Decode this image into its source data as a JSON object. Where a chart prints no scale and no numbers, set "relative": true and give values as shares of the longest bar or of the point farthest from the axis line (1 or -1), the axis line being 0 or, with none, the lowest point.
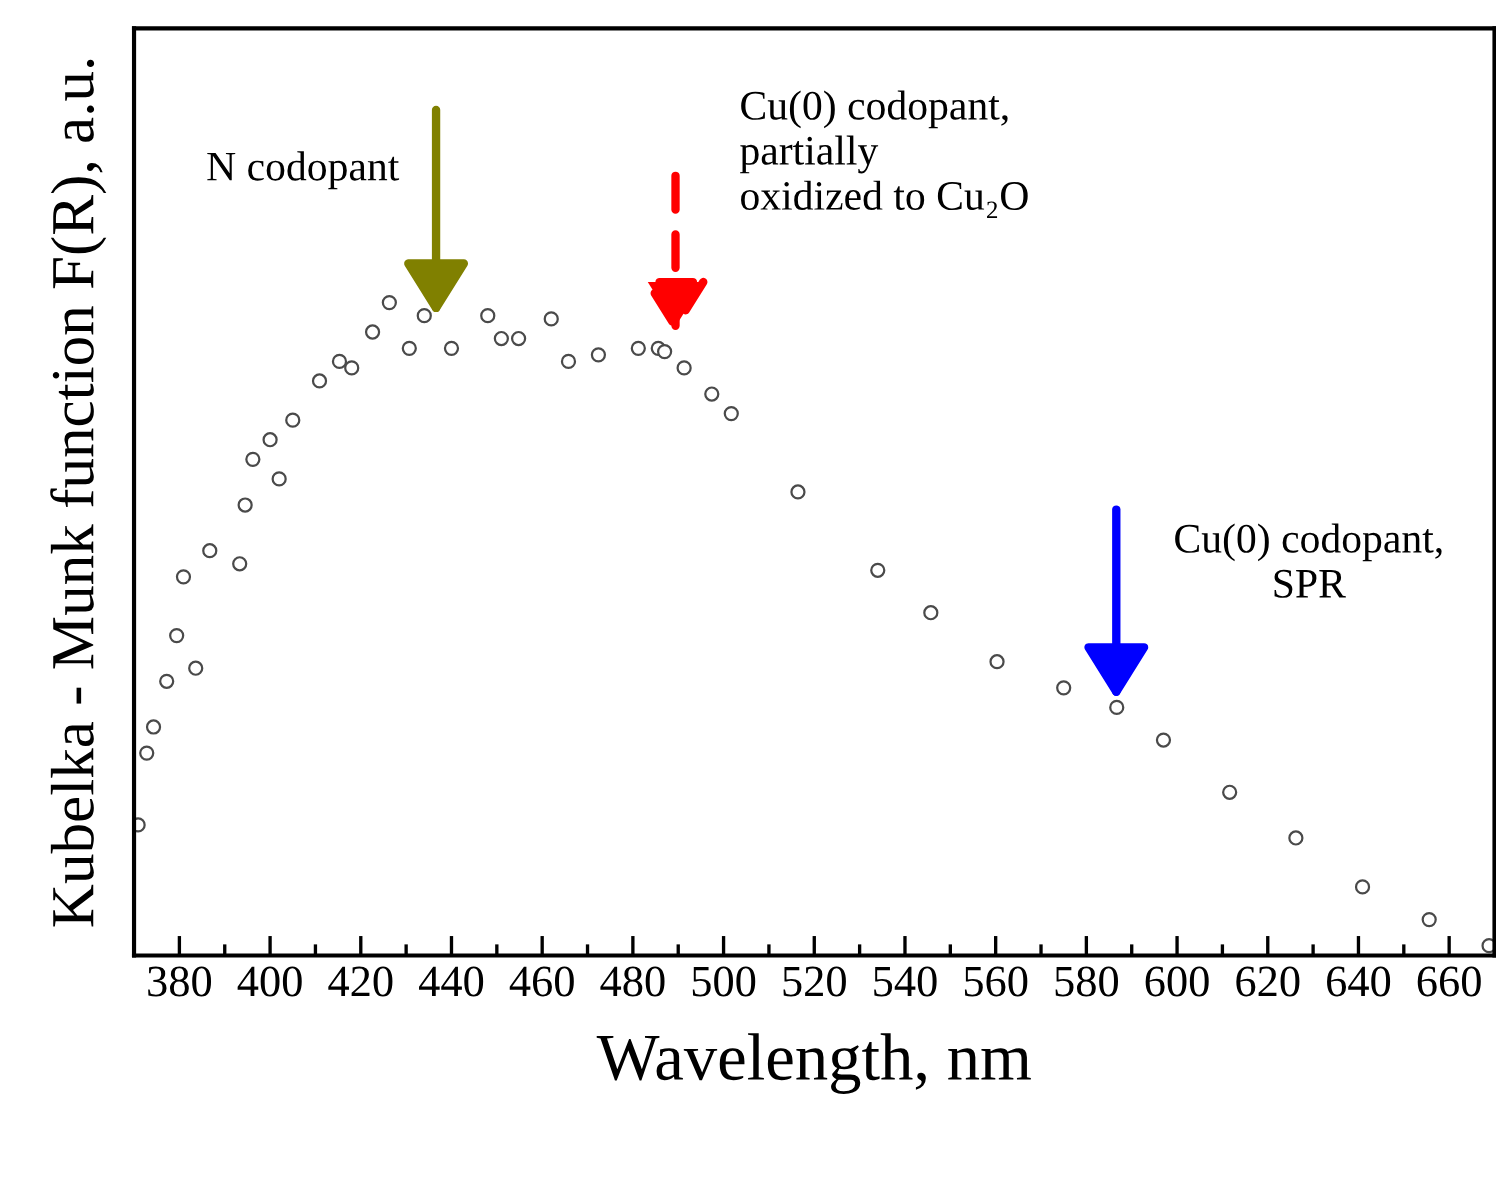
{
  "chart_data": {
    "type": "scatter",
    "xlabel": "Wavelength, nm",
    "ylabel": "Kubelka - Munk function F(R), a.u.",
    "relative": true,
    "marker": "circle",
    "grid": false,
    "xlim": [
      370,
      670
    ],
    "xticks": [
      380,
      400,
      420,
      440,
      460,
      480,
      500,
      520,
      540,
      560,
      580,
      600,
      620,
      640,
      660
    ],
    "series": [
      {
        "color": "#4a4a4a",
        "x": [
          370.9,
          372.8,
          374.3,
          377.2,
          379.4,
          380.9,
          383.6,
          386.7,
          393.3,
          394.5,
          396.2,
          400,
          402,
          405,
          410.9,
          415.3,
          418,
          422.6,
          426.3,
          430.7,
          434,
          440,
          448,
          451,
          454.8,
          462,
          465.8,
          472.4,
          481.2,
          485.6,
          487,
          491.3,
          497.4,
          501.7,
          516.4,
          534,
          545.7,
          560.3,
          575,
          586.7,
          597,
          611.6,
          626.2,
          640.9,
          655.6,
          668.8
        ],
        "values": [
          0.2,
          0.31,
          0.35,
          0.42,
          0.49,
          0.58,
          0.44,
          0.62,
          0.6,
          0.69,
          0.76,
          0.79,
          0.73,
          0.82,
          0.88,
          0.91,
          0.9,
          0.955,
          1,
          0.93,
          0.98,
          0.93,
          0.98,
          0.945,
          0.945,
          0.975,
          0.91,
          0.92,
          0.93,
          0.93,
          0.925,
          0.9,
          0.86,
          0.83,
          0.71,
          0.59,
          0.525,
          0.45,
          0.41,
          0.38,
          0.33,
          0.25,
          0.18,
          0.105,
          0.055,
          0.015
        ]
      }
    ],
    "annotations": [
      "N codopant",
      "Cu(0) codopant,\npartially\noxidized to Cu₂O",
      "Cu(0) codopant,\nSPR"
    ]
  }
}
